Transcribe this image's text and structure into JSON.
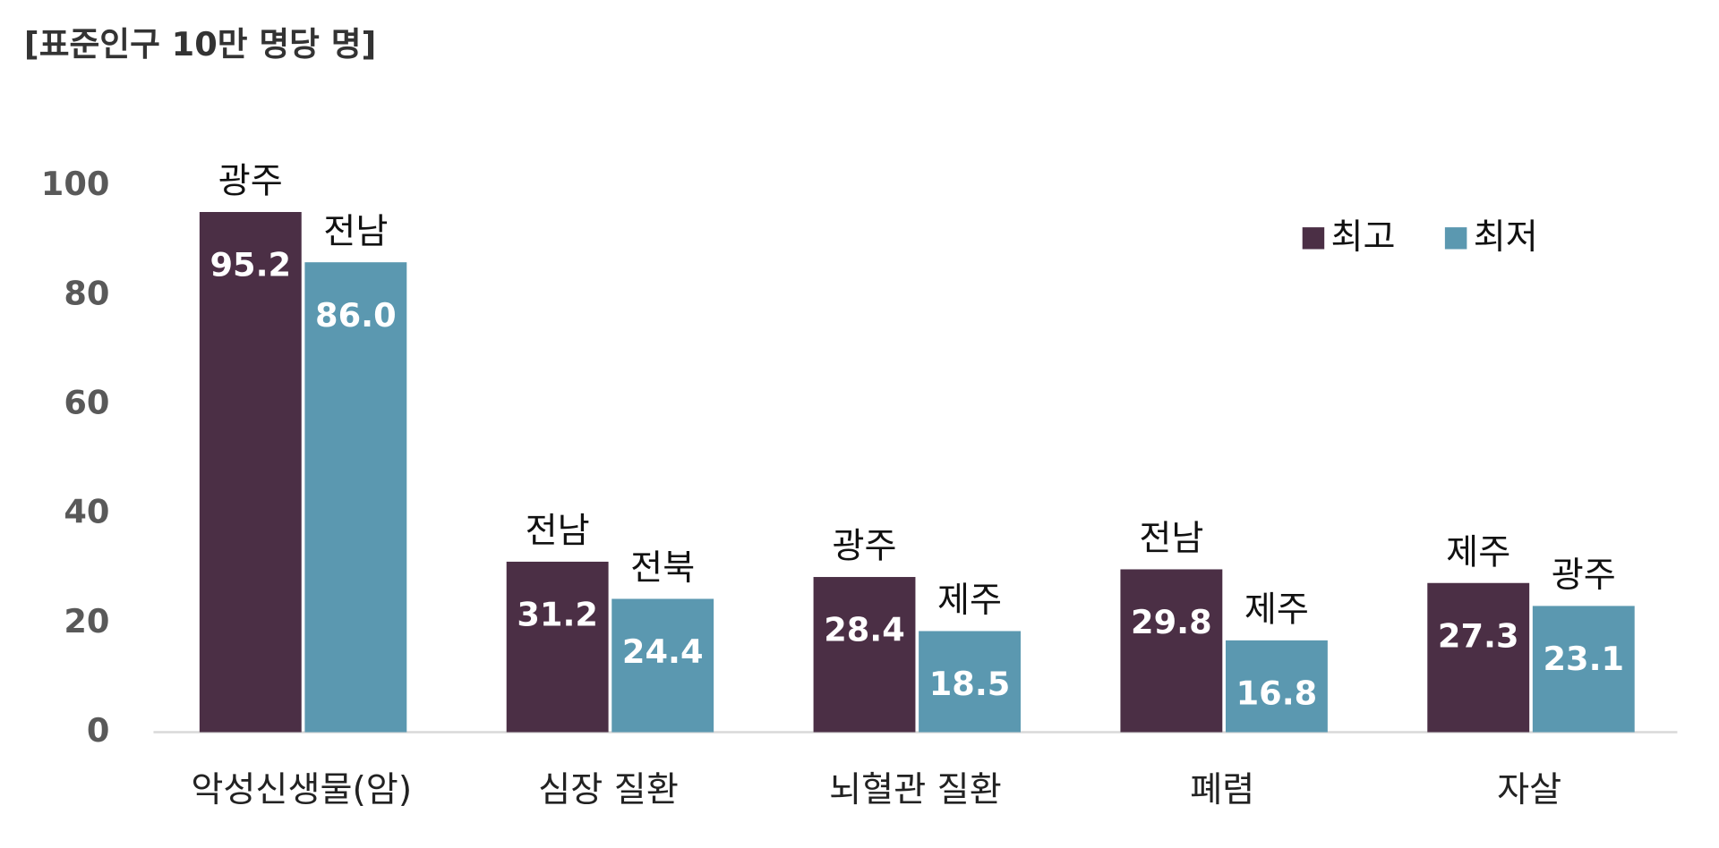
{
  "chart_data": {
    "type": "bar",
    "title": "[표준인구 10만 명당 명]",
    "categories": [
      "악성신생물(암)",
      "심장 질환",
      "뇌혈관 질환",
      "폐렴",
      "자살"
    ],
    "series": [
      {
        "name": "최고",
        "color": "#4b2f45",
        "values": [
          95.2,
          31.2,
          28.4,
          29.8,
          27.3
        ],
        "value_labels": [
          "95.2",
          "31.2",
          "28.4",
          "29.8",
          "27.3"
        ],
        "annotations": [
          "광주",
          "전남",
          "광주",
          "전남",
          "제주"
        ]
      },
      {
        "name": "최저",
        "color": "#5b98b0",
        "values": [
          86.0,
          24.4,
          18.5,
          16.8,
          23.1
        ],
        "value_labels": [
          "86.0",
          "24.4",
          "18.5",
          "16.8",
          "23.1"
        ],
        "annotations": [
          "전남",
          "전북",
          "제주",
          "제주",
          "광주"
        ]
      }
    ],
    "ylim": [
      0,
      100
    ],
    "yticks": [
      0,
      20,
      40,
      60,
      80,
      100
    ],
    "legend": "upper right",
    "grid": false
  }
}
